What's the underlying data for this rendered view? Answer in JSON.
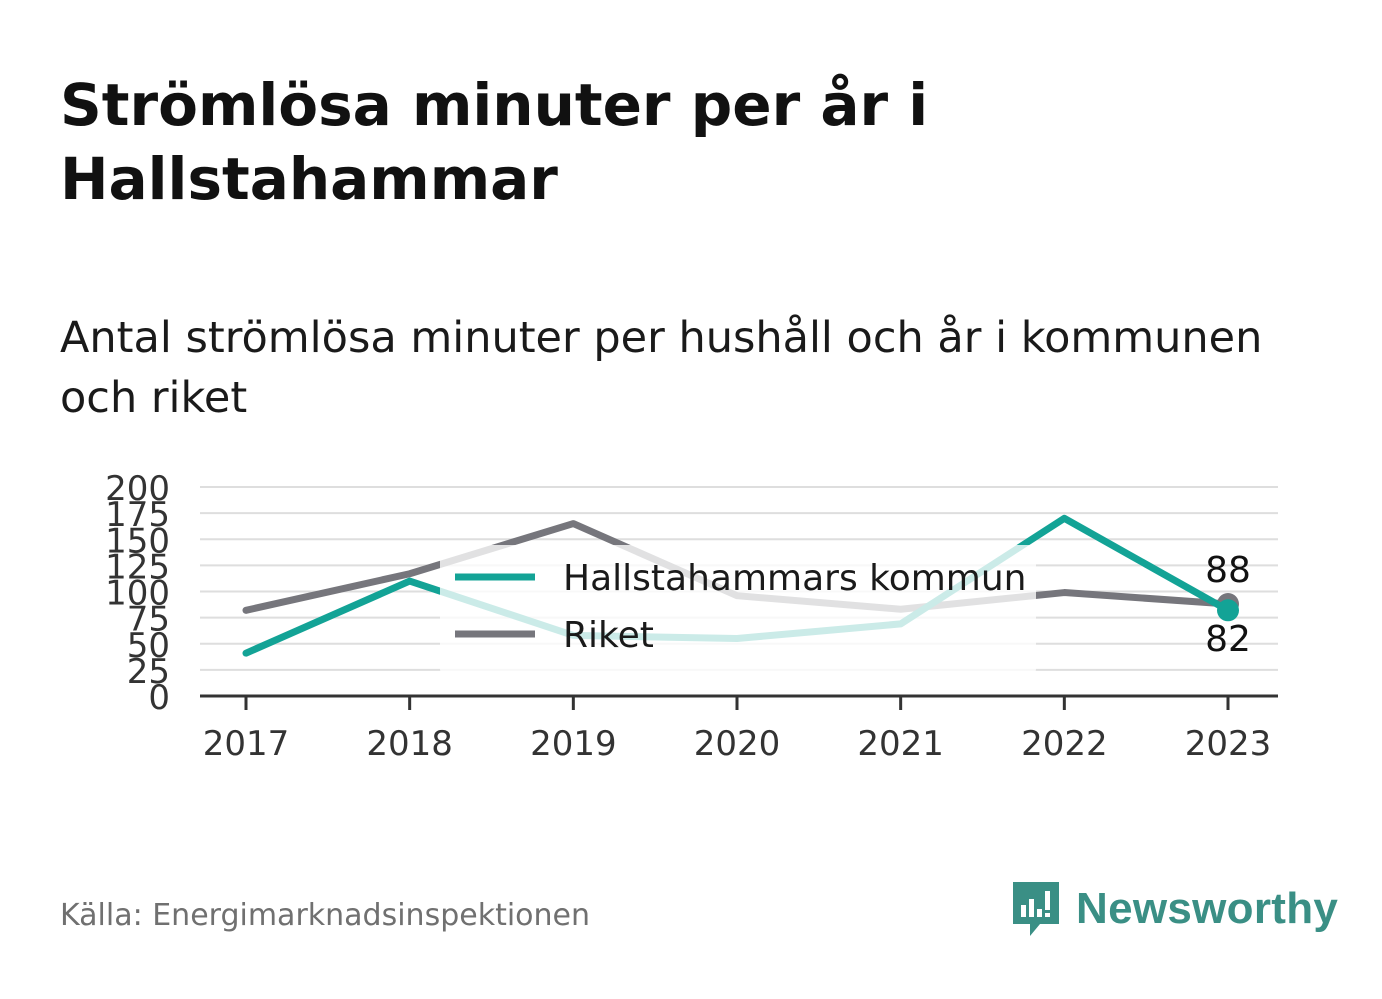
{
  "title": "Strömlösa minuter per år i Hallstahammar",
  "subtitle": "Antal strömlösa minuter per hushåll och år i kommunen och riket",
  "source": "Källa: Energimarknadsinspektionen",
  "brand": {
    "name": "Newsworthy",
    "icon": "newsworthy-logo-icon",
    "color": "#3a8f85"
  },
  "chart_data": {
    "type": "line",
    "x": [
      "2017",
      "2018",
      "2019",
      "2020",
      "2021",
      "2022",
      "2023"
    ],
    "y_ticks": [
      "0",
      "25",
      "50",
      "75",
      "100",
      "125",
      "150",
      "175",
      "200"
    ],
    "ylim": [
      0,
      200
    ],
    "grid": true,
    "legend_position": "center",
    "series": [
      {
        "name": "Hallstahammars kommun",
        "color": "#13a396",
        "values": [
          41,
          110,
          58,
          55,
          69,
          170,
          82
        ],
        "end_label": "82"
      },
      {
        "name": "Riket",
        "color": "#76767c",
        "values": [
          82,
          117,
          165,
          96,
          83,
          99,
          88
        ],
        "end_label": "88"
      }
    ]
  }
}
